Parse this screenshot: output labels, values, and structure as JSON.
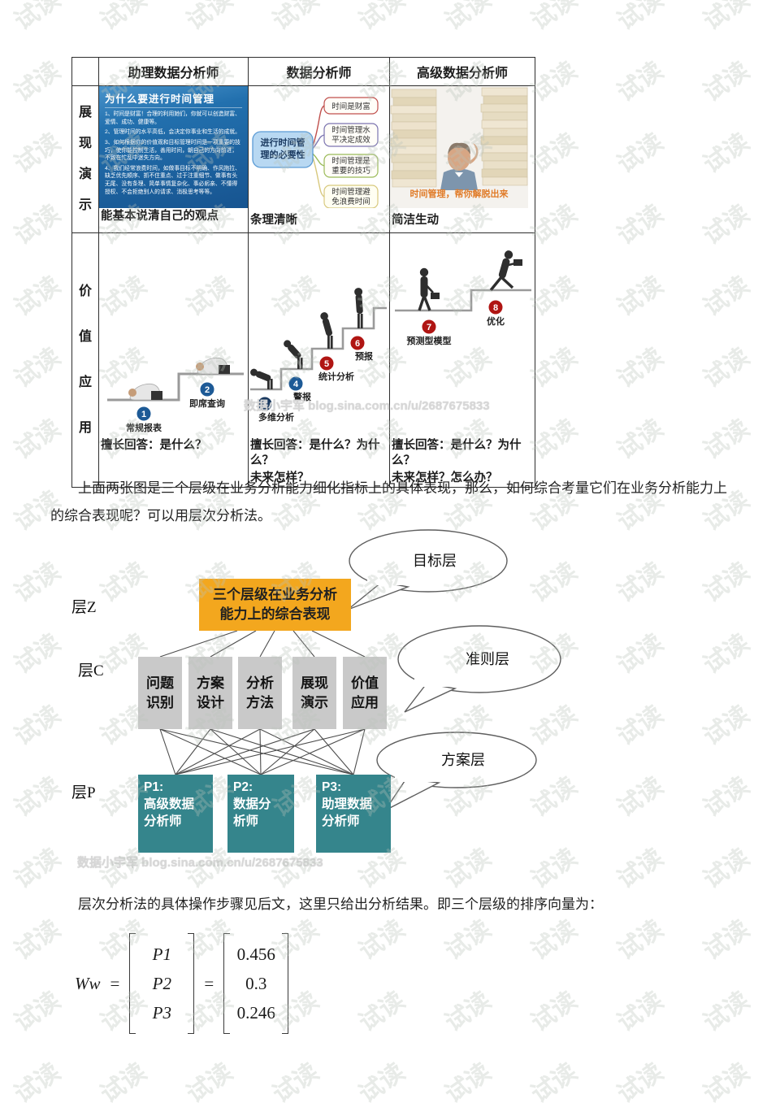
{
  "watermark": {
    "text": "试读"
  },
  "table": {
    "col_headers": {
      "c1": "助理数据分析师",
      "c2": "数据分析师",
      "c3": "高级数据分析师"
    },
    "row1": {
      "label": "展现演示",
      "slide": {
        "title": "为什么要进行时间管理",
        "p1": "1、时间是财富！合理的利用她们，你就可以创造财富、爱情、成功、健康等。",
        "p2": "2、管理时间的水平高低，会决定你事业和生活的成就。",
        "p3": "3、如何根据你的价值观和目标管理时间是一项重要的技巧，使你能控制生活，善用时间，朝自己的方向前进，不致在忙乱中迷失方向。",
        "p4": "4、我们经常浪费时间，如做事目标不明确、作风拖拉、缺乏优先顺序、抓不住重点、过于注重细节、做事有头无尾、没有条理、简单事情复杂化、事必躬亲、不懂得授权、不会拒绝别人的请求、消极思考等等。"
      },
      "c1_caption": "能基本说清自己的观点",
      "mindmap": {
        "center_l1": "进行时间管",
        "center_l2": "理的必要性",
        "b1": "时间是财富",
        "b2_l1": "时间管理水",
        "b2_l2": "平决定成效",
        "b3_l1": "时间管理是",
        "b3_l2": "重要的技巧",
        "b4_l1": "时间管理避",
        "b4_l2": "免浪费时间"
      },
      "c2_caption": "条理清晰",
      "photo": {
        "overlay": "时间管理，帮你解脱出来"
      },
      "c3_caption": "简洁生动"
    },
    "row2": {
      "label": "价值应用",
      "c1": {
        "steps": [
          {
            "n": "1",
            "label": "常规报表"
          },
          {
            "n": "2",
            "label": "即席查询"
          }
        ],
        "caption_l1": "擅长回答：是什么？",
        "caption_l2": ""
      },
      "c2": {
        "steps": [
          {
            "n": "3",
            "label": "多维分析"
          },
          {
            "n": "4",
            "label": "警报"
          },
          {
            "n": "5",
            "label": "统计分析"
          },
          {
            "n": "6",
            "label": "预报"
          }
        ],
        "caption_l1": "擅长回答：是什么？为什么？",
        "caption_l2": "未来怎样？"
      },
      "c3": {
        "steps": [
          {
            "n": "7",
            "label": "预测型模型"
          },
          {
            "n": "8",
            "label": "优化"
          }
        ],
        "caption_l1": "擅长回答：是什么？为什么？",
        "caption_l2": "未来怎样？怎么办？"
      },
      "blog_watermark": "数据小宇军 blog.sina.com.cn/u/2687675833"
    }
  },
  "paragraph1": "上面两张图是三个层级在业务分析能力细化指标上的具体表现，那么，如何综合考量它们在业务分析能力上的综合表现呢？可以用层次分析法。",
  "diagram": {
    "layer_labels": {
      "z": "层Z",
      "c": "层C",
      "p": "层P"
    },
    "bubbles": {
      "goal": "目标层",
      "criteria": "准则层",
      "plan": "方案层"
    },
    "goal_box": {
      "l1": "三个层级在业务分析",
      "l2": "能力上的综合表现"
    },
    "criteria": [
      {
        "l1": "问题",
        "l2": "识别"
      },
      {
        "l1": "方案",
        "l2": "设计"
      },
      {
        "l1": "分析",
        "l2": "方法"
      },
      {
        "l1": "展现",
        "l2": "演示"
      },
      {
        "l1": "价值",
        "l2": "应用"
      }
    ],
    "plans": [
      {
        "id": "P1:",
        "l1": "高级数据",
        "l2": "分析师"
      },
      {
        "id": "P2:",
        "l1": "数据分",
        "l2": "析师"
      },
      {
        "id": "P3:",
        "l1": "助理数据",
        "l2": "分析师"
      }
    ],
    "blog_watermark": "数据小宇军 blog.sina.com.cn/u/2687675833"
  },
  "paragraph2": "层次分析法的具体操作步骤见后文，这里只给出分析结果。即三个层级的排序向量为：",
  "formula": {
    "lhs": "Ww",
    "eq1": "=",
    "eq2": "=",
    "vector_labels": [
      "P1",
      "P2",
      "P3"
    ],
    "values": [
      "0.456",
      "0.3",
      "0.246"
    ]
  },
  "colors": {
    "goal_orange": "#F3A71E",
    "criteria_gray": "#C9C9C9",
    "plan_teal": "#35858C",
    "circle_blue": "#1D5A96",
    "circle_navy": "#17375E",
    "circle_red": "#B01513",
    "photo_overlay_orange": "#E07B28"
  }
}
